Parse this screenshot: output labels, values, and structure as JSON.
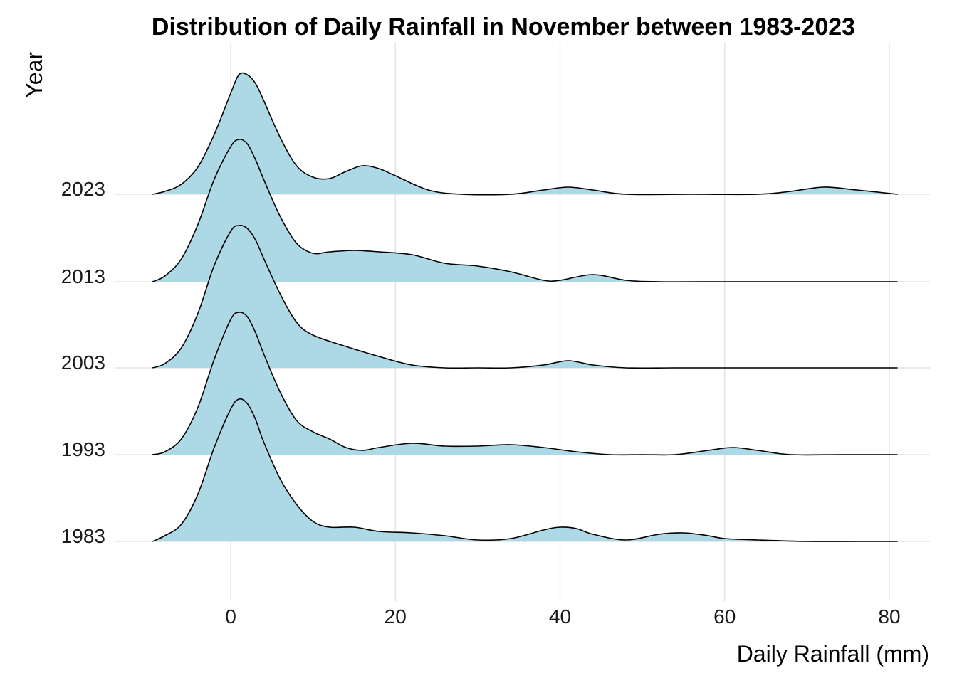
{
  "chart_data": {
    "type": "ridgeline",
    "title": "Distribution of Daily Rainfall in November between 1983-2023",
    "xlabel": "Daily Rainfall (mm)",
    "ylabel": "Year",
    "xlim": [
      -9.5,
      81
    ],
    "xticks": [
      0,
      20,
      40,
      60,
      80
    ],
    "grid": true,
    "fill_color": "#add8e6",
    "line_color": "#000000",
    "density_scale_max": 1.0,
    "series": [
      {
        "name": "1983",
        "x": [
          -9.5,
          -8,
          -6,
          -4,
          -2,
          0,
          1,
          2,
          3,
          4,
          6,
          8,
          10,
          12,
          15,
          18,
          22,
          26,
          30,
          34,
          38,
          40,
          42,
          44,
          48,
          52,
          55,
          58,
          60,
          64,
          70,
          76,
          81
        ],
        "density": [
          0.0,
          0.04,
          0.12,
          0.33,
          0.66,
          0.93,
          1.0,
          0.97,
          0.86,
          0.7,
          0.44,
          0.26,
          0.14,
          0.1,
          0.1,
          0.07,
          0.06,
          0.04,
          0.01,
          0.02,
          0.08,
          0.1,
          0.09,
          0.05,
          0.01,
          0.05,
          0.06,
          0.04,
          0.02,
          0.01,
          0.0,
          0.0,
          0.0
        ]
      },
      {
        "name": "1993",
        "x": [
          -9.5,
          -8,
          -6,
          -4,
          -2,
          0,
          1,
          2,
          3,
          4,
          6,
          8,
          10,
          12,
          14,
          16,
          18,
          22,
          26,
          30,
          34,
          38,
          42,
          46,
          50,
          54,
          58,
          61,
          64,
          68,
          74,
          81
        ],
        "density": [
          0.0,
          0.02,
          0.11,
          0.33,
          0.67,
          0.95,
          1.0,
          0.97,
          0.86,
          0.71,
          0.44,
          0.24,
          0.16,
          0.11,
          0.05,
          0.03,
          0.05,
          0.08,
          0.06,
          0.06,
          0.07,
          0.05,
          0.02,
          0.0,
          0.0,
          0.0,
          0.03,
          0.05,
          0.03,
          0.0,
          0.0,
          0.0
        ]
      },
      {
        "name": "2003",
        "x": [
          -9.5,
          -8,
          -6,
          -4,
          -2,
          0,
          1,
          2,
          3,
          4,
          6,
          8,
          10,
          14,
          18,
          22,
          26,
          30,
          34,
          38,
          41,
          44,
          48,
          54,
          60,
          70,
          81
        ],
        "density": [
          0.0,
          0.03,
          0.14,
          0.38,
          0.72,
          0.96,
          1.0,
          0.98,
          0.9,
          0.77,
          0.52,
          0.32,
          0.23,
          0.15,
          0.08,
          0.02,
          0.0,
          0.0,
          0.0,
          0.02,
          0.05,
          0.02,
          0.0,
          0.0,
          0.0,
          0.0,
          0.0
        ]
      },
      {
        "name": "2013",
        "x": [
          -9.5,
          -8,
          -6,
          -4,
          -2,
          0,
          1,
          2,
          3,
          4,
          6,
          8,
          10,
          12,
          15,
          18,
          22,
          26,
          30,
          34,
          38,
          40,
          44,
          48,
          52,
          60,
          70,
          81
        ],
        "density": [
          0.0,
          0.04,
          0.16,
          0.4,
          0.72,
          0.95,
          1.0,
          0.97,
          0.86,
          0.72,
          0.46,
          0.27,
          0.2,
          0.21,
          0.22,
          0.21,
          0.19,
          0.13,
          0.11,
          0.07,
          0.01,
          0.01,
          0.05,
          0.01,
          0.0,
          0.0,
          0.0,
          0.0
        ]
      },
      {
        "name": "2023",
        "x": [
          -9.5,
          -8,
          -6,
          -4,
          -2,
          0,
          1,
          2,
          3,
          4,
          6,
          8,
          10,
          12,
          14,
          16,
          18,
          20,
          24,
          28,
          34,
          38,
          41,
          44,
          48,
          56,
          64,
          68,
          72,
          76,
          81
        ],
        "density": [
          0.0,
          0.02,
          0.07,
          0.19,
          0.42,
          0.71,
          0.84,
          0.84,
          0.78,
          0.66,
          0.4,
          0.2,
          0.12,
          0.11,
          0.16,
          0.2,
          0.18,
          0.13,
          0.03,
          0.0,
          0.0,
          0.03,
          0.05,
          0.03,
          0.0,
          0.0,
          0.0,
          0.02,
          0.05,
          0.03,
          0.0
        ]
      }
    ]
  }
}
